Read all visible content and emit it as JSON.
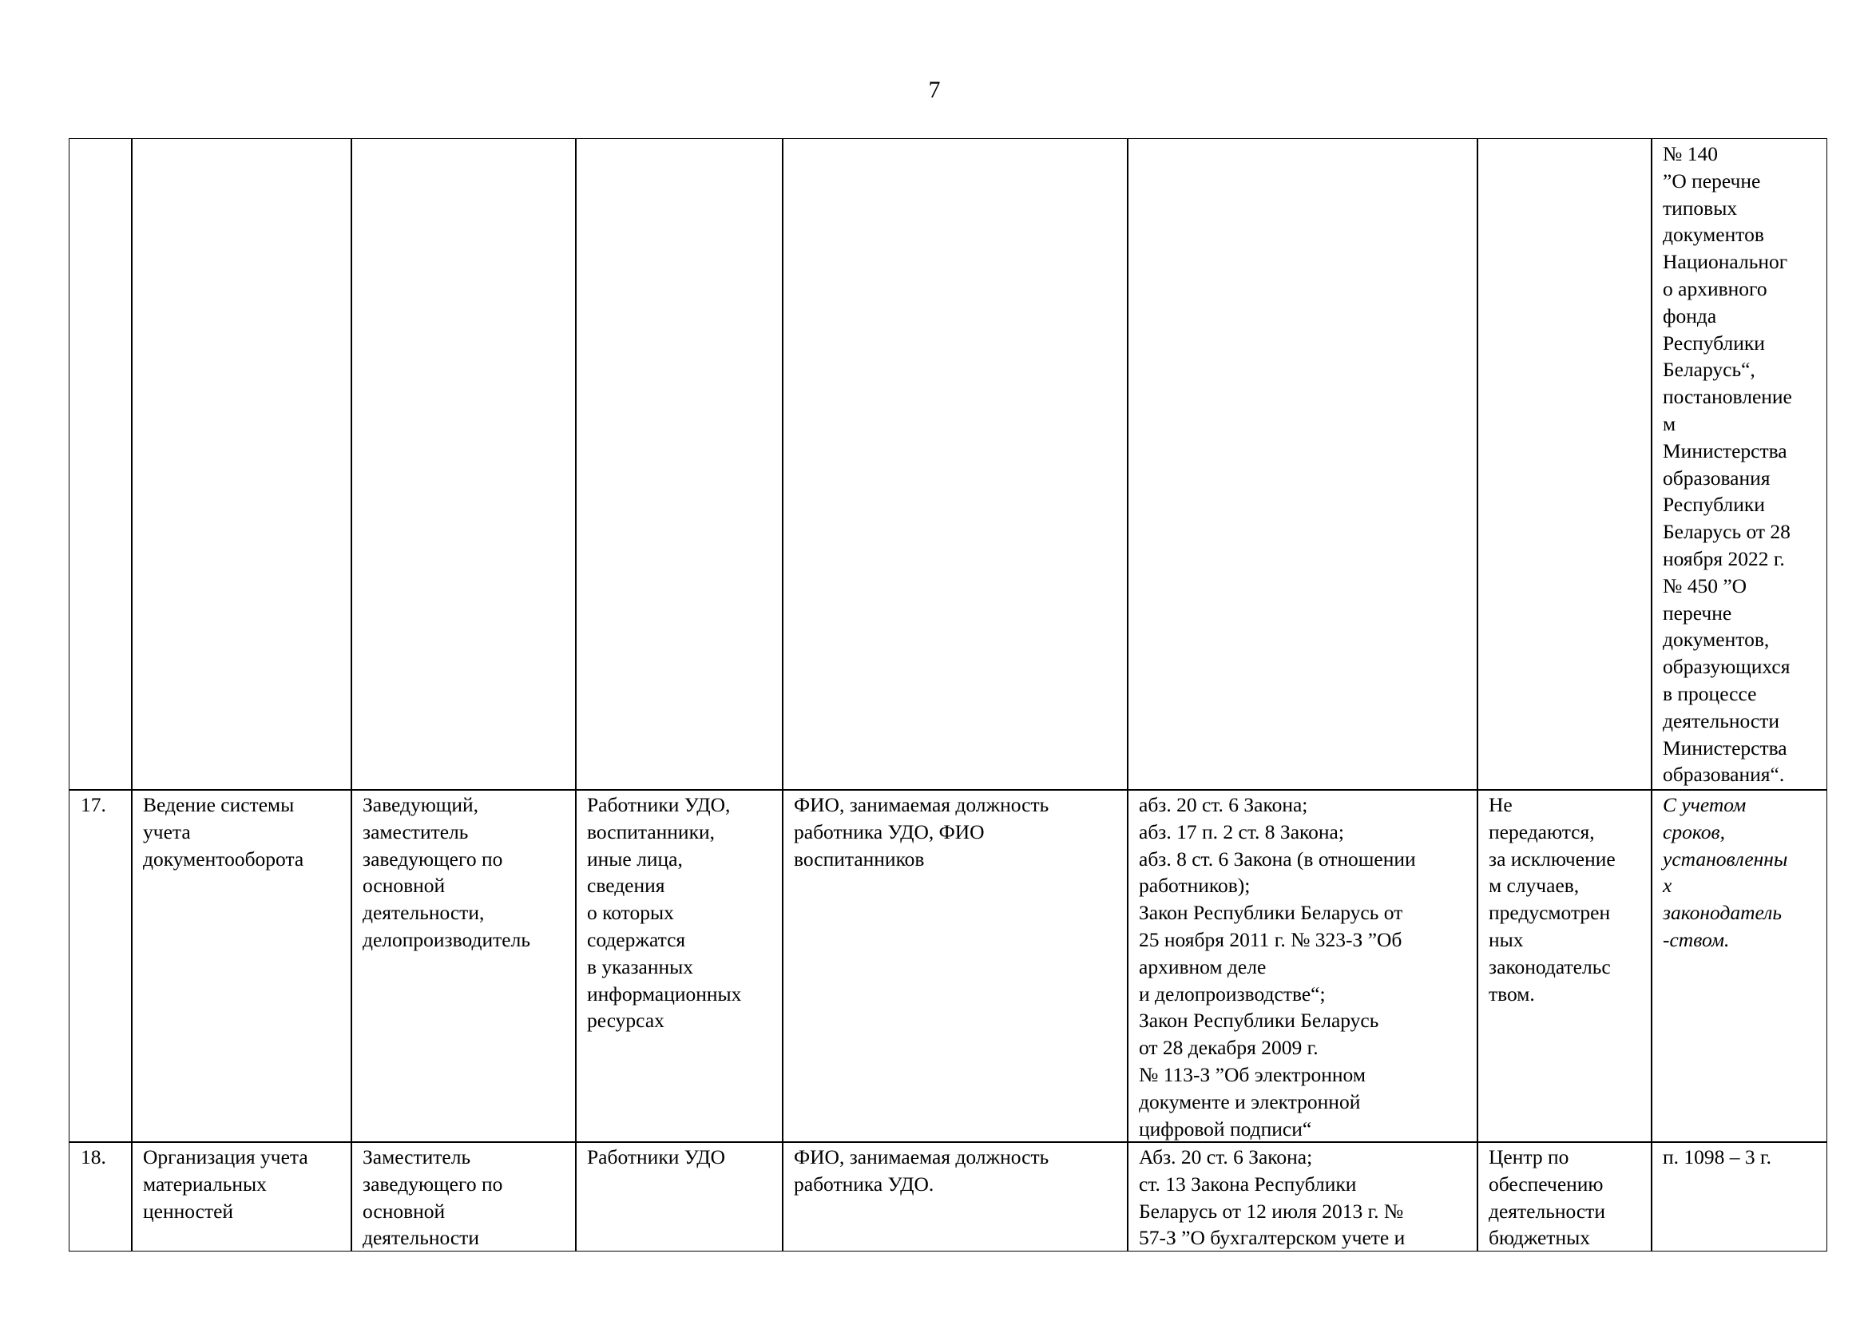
{
  "page_number": "7",
  "table": {
    "rows": [
      [
        [],
        [],
        [],
        [],
        [],
        [],
        [],
        [
          "№ 140",
          "”О перечне",
          "типовых",
          "документов",
          "Национальног",
          "о архивного",
          "фонда",
          "Республики",
          "Беларусь“,",
          "постановление",
          "м",
          "Министерства",
          "образования",
          "Республики",
          "Беларусь от 28",
          "ноября 2022 г.",
          "№ 450 ”О",
          "перечне",
          "документов,",
          "образующихся",
          "в процессе",
          "деятельности",
          "Министерства",
          "образования“."
        ]
      ],
      [
        [
          "17."
        ],
        [
          "Ведение системы",
          "учета",
          "документооборота"
        ],
        [
          "Заведующий,",
          "заместитель",
          "заведующего по",
          "основной",
          "деятельности,",
          "делопроизводитель"
        ],
        [
          "Работники УДО,",
          "воспитанники,",
          "иные лица,",
          "сведения",
          "о которых",
          "содержатся",
          "в указанных",
          "информационных",
          "ресурсах"
        ],
        [
          "ФИО, занимаемая должность",
          "работника УДО, ФИО",
          "воспитанников"
        ],
        [
          "абз. 20 ст. 6 Закона;",
          "абз. 17 п. 2 ст. 8 Закона;",
          "абз. 8 ст. 6 Закона (в отношении",
          "работников);",
          "Закон Республики Беларусь от",
          "25 ноября 2011 г. № 323-З ”Об",
          "архивном деле",
          "и делопроизводстве“;",
          "Закон Республики Беларусь",
          "от 28 декабря 2009 г.",
          "№ 113-З ”Об электронном",
          "документе и электронной",
          "цифровой подписи“"
        ],
        [
          "Не",
          "передаются,",
          "за исключение",
          "м случаев,",
          "предусмотрен",
          "ных",
          "законодательс",
          "твом."
        ],
        [
          "С учетом",
          "сроков,",
          "установленны",
          "х",
          "законодатель",
          "-ством."
        ]
      ],
      [
        [
          "18."
        ],
        [
          "Организация учета",
          "материальных",
          "ценностей"
        ],
        [
          "Заместитель",
          "заведующего по",
          "основной",
          "деятельности"
        ],
        [
          "Работники УДО"
        ],
        [
          "ФИО, занимаемая должность",
          "работника УДО."
        ],
        [
          "Абз. 20 ст. 6 Закона;",
          "ст. 13 Закона Республики",
          "Беларусь от 12 июля 2013 г. №",
          "57-З ”О бухгалтерском учете и"
        ],
        [
          "Центр по",
          "обеспечению",
          "деятельности",
          "бюджетных"
        ],
        [
          "п. 1098 – 3 г."
        ]
      ]
    ]
  }
}
